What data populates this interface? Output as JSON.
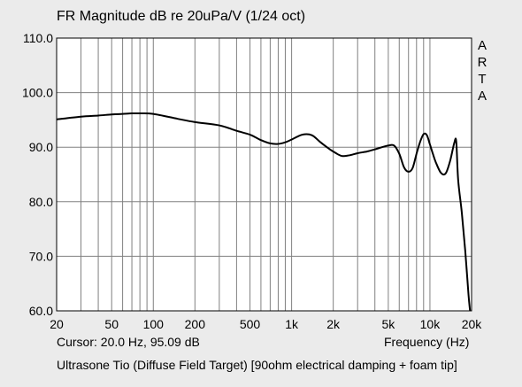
{
  "chart_data": {
    "type": "line",
    "title": "FR Magnitude dB re 20uPa/V (1/24 oct)",
    "xlabel": "Frequency (Hz)",
    "ylabel": "",
    "x_scale": "log",
    "xlim": [
      20,
      20000
    ],
    "ylim": [
      60,
      110
    ],
    "grid": true,
    "colors": {
      "background": "#ebebeb",
      "plot_area": "#ffffff",
      "grid": "#808080",
      "line": "#000000"
    },
    "x_ticks": [
      {
        "value": 20,
        "label": "20"
      },
      {
        "value": 50,
        "label": "50"
      },
      {
        "value": 100,
        "label": "100"
      },
      {
        "value": 200,
        "label": "200"
      },
      {
        "value": 500,
        "label": "500"
      },
      {
        "value": 1000,
        "label": "1k"
      },
      {
        "value": 2000,
        "label": "2k"
      },
      {
        "value": 5000,
        "label": "5k"
      },
      {
        "value": 10000,
        "label": "10k"
      },
      {
        "value": 20000,
        "label": "20k"
      }
    ],
    "y_ticks": [
      {
        "value": 60,
        "label": "60.0"
      },
      {
        "value": 70,
        "label": "70.0"
      },
      {
        "value": 80,
        "label": "80.0"
      },
      {
        "value": 90,
        "label": "90.0"
      },
      {
        "value": 100,
        "label": "100.0"
      },
      {
        "value": 110,
        "label": "110.0"
      }
    ],
    "series": [
      {
        "x": [
          20,
          30,
          40,
          50,
          60,
          70,
          80,
          100,
          150,
          200,
          300,
          400,
          500,
          600,
          700,
          800,
          900,
          1000,
          1200,
          1400,
          1600,
          1800,
          2000,
          2300,
          2600,
          3000,
          3500,
          4000,
          4500,
          5000,
          5500,
          6000,
          6500,
          7000,
          7500,
          8000,
          8500,
          9000,
          9500,
          10000,
          10500,
          11000,
          12000,
          13000,
          14000,
          15000,
          15500,
          16000,
          17000,
          18000,
          19000,
          19500
        ],
        "y": [
          95.1,
          95.6,
          95.8,
          96.0,
          96.1,
          96.2,
          96.2,
          96.1,
          95.2,
          94.6,
          94.0,
          93.0,
          92.3,
          91.3,
          90.7,
          90.6,
          90.9,
          91.4,
          92.3,
          92.2,
          91.0,
          90.0,
          89.2,
          88.4,
          88.5,
          88.9,
          89.2,
          89.6,
          90.0,
          90.3,
          90.3,
          88.8,
          86.3,
          85.5,
          86.2,
          88.8,
          91.0,
          92.4,
          92.2,
          90.5,
          88.8,
          87.3,
          85.3,
          85.2,
          87.5,
          90.8,
          91.0,
          84.0,
          78.0,
          71.0,
          63.0,
          60.0
        ]
      }
    ],
    "annotations": {
      "arta_letters": [
        "A",
        "R",
        "T",
        "A"
      ],
      "cursor": "Cursor: 20.0 Hz, 95.09 dB",
      "caption": "Ultrasone Tio (Diffuse Field Target) [90ohm electrical damping + foam tip]"
    }
  }
}
